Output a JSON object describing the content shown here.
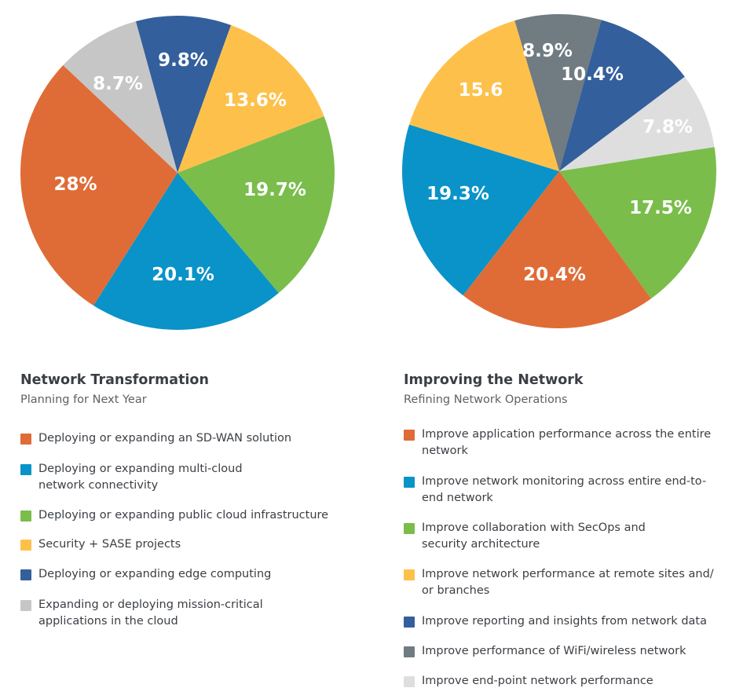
{
  "chart_data": [
    {
      "type": "pie",
      "title": "Network Transformation",
      "subtitle": "Planning for Next Year",
      "slices": [
        {
          "name": "Deploying or expanding edge computing",
          "value": 9.8,
          "label": "9.8%",
          "color": "#335f9c"
        },
        {
          "name": "Security + SASE projects",
          "value": 13.6,
          "label": "13.6%",
          "color": "#fdc14b"
        },
        {
          "name": "Deploying or expanding public cloud infrastructure",
          "value": 19.7,
          "label": "19.7%",
          "color": "#7abd4b"
        },
        {
          "name": "Deploying or expanding multi-cloud network connectivity",
          "value": 20.1,
          "label": "20.1%",
          "color": "#0993c8"
        },
        {
          "name": "Deploying or expanding an SD-WAN solution",
          "value": 28,
          "label": "28%",
          "color": "#df6c36"
        },
        {
          "name": "Expanding or deploying mission-critical applications in the cloud",
          "value": 8.7,
          "label": "8.7%",
          "color": "#c6c6c6"
        }
      ],
      "legend": [
        {
          "line1": "Deploying or expanding an SD-WAN solution",
          "line2": "",
          "color": "#df6c36"
        },
        {
          "line1": "Deploying or expanding multi-cloud",
          "line2": "network connectivity",
          "color": "#0993c8"
        },
        {
          "line1": "Deploying or expanding public cloud infrastructure",
          "line2": "",
          "color": "#7abd4b"
        },
        {
          "line1": "Security + SASE projects",
          "line2": "",
          "color": "#fdc14b"
        },
        {
          "line1": "Deploying or expanding edge computing",
          "line2": "",
          "color": "#335f9c"
        },
        {
          "line1": "Expanding or deploying mission-critical",
          "line2": "applications in the cloud",
          "color": "#c6c6c6"
        }
      ]
    },
    {
      "type": "pie",
      "title": "Improving the Network",
      "subtitle": "Refining Network Operations",
      "slices": [
        {
          "name": "Improve performance of WiFi/wireless network",
          "value": 8.9,
          "label": "8.9%",
          "color": "#707b82"
        },
        {
          "name": "Improve reporting and insights from network data",
          "value": 10.4,
          "label": "10.4%",
          "color": "#335f9c"
        },
        {
          "name": "Improve end-point network performance",
          "value": 7.8,
          "label": "7.8%",
          "color": "#dedede"
        },
        {
          "name": "Improve collaboration with SecOps and security architecture",
          "value": 17.5,
          "label": "17.5%",
          "color": "#7abd4b"
        },
        {
          "name": "Improve application performance across the entire network",
          "value": 20.4,
          "label": "20.4%",
          "color": "#df6c36"
        },
        {
          "name": "Improve network monitoring across entire end-to-end network",
          "value": 19.3,
          "label": "19.3%",
          "color": "#0993c8"
        },
        {
          "name": "Improve network performance at remote sites and/or branches",
          "value": 15.6,
          "label": "15.6",
          "color": "#fdc14b"
        }
      ],
      "legend": [
        {
          "line1": "Improve application performance across the entire",
          "line2": "network",
          "color": "#df6c36"
        },
        {
          "line1": "Improve network monitoring across entire end-to-",
          "line2": "end network",
          "color": "#0993c8"
        },
        {
          "line1": "Improve collaboration with SecOps and",
          "line2": "security architecture",
          "color": "#7abd4b"
        },
        {
          "line1": "Improve network performance at remote sites and/",
          "line2": "or branches",
          "color": "#fdc14b"
        },
        {
          "line1": "Improve reporting and insights from network data",
          "line2": "",
          "color": "#335f9c"
        },
        {
          "line1": "Improve performance of WiFi/wireless network",
          "line2": "",
          "color": "#707b82"
        },
        {
          "line1": "Improve end-point network performance",
          "line2": "",
          "color": "#dedede"
        }
      ]
    }
  ]
}
